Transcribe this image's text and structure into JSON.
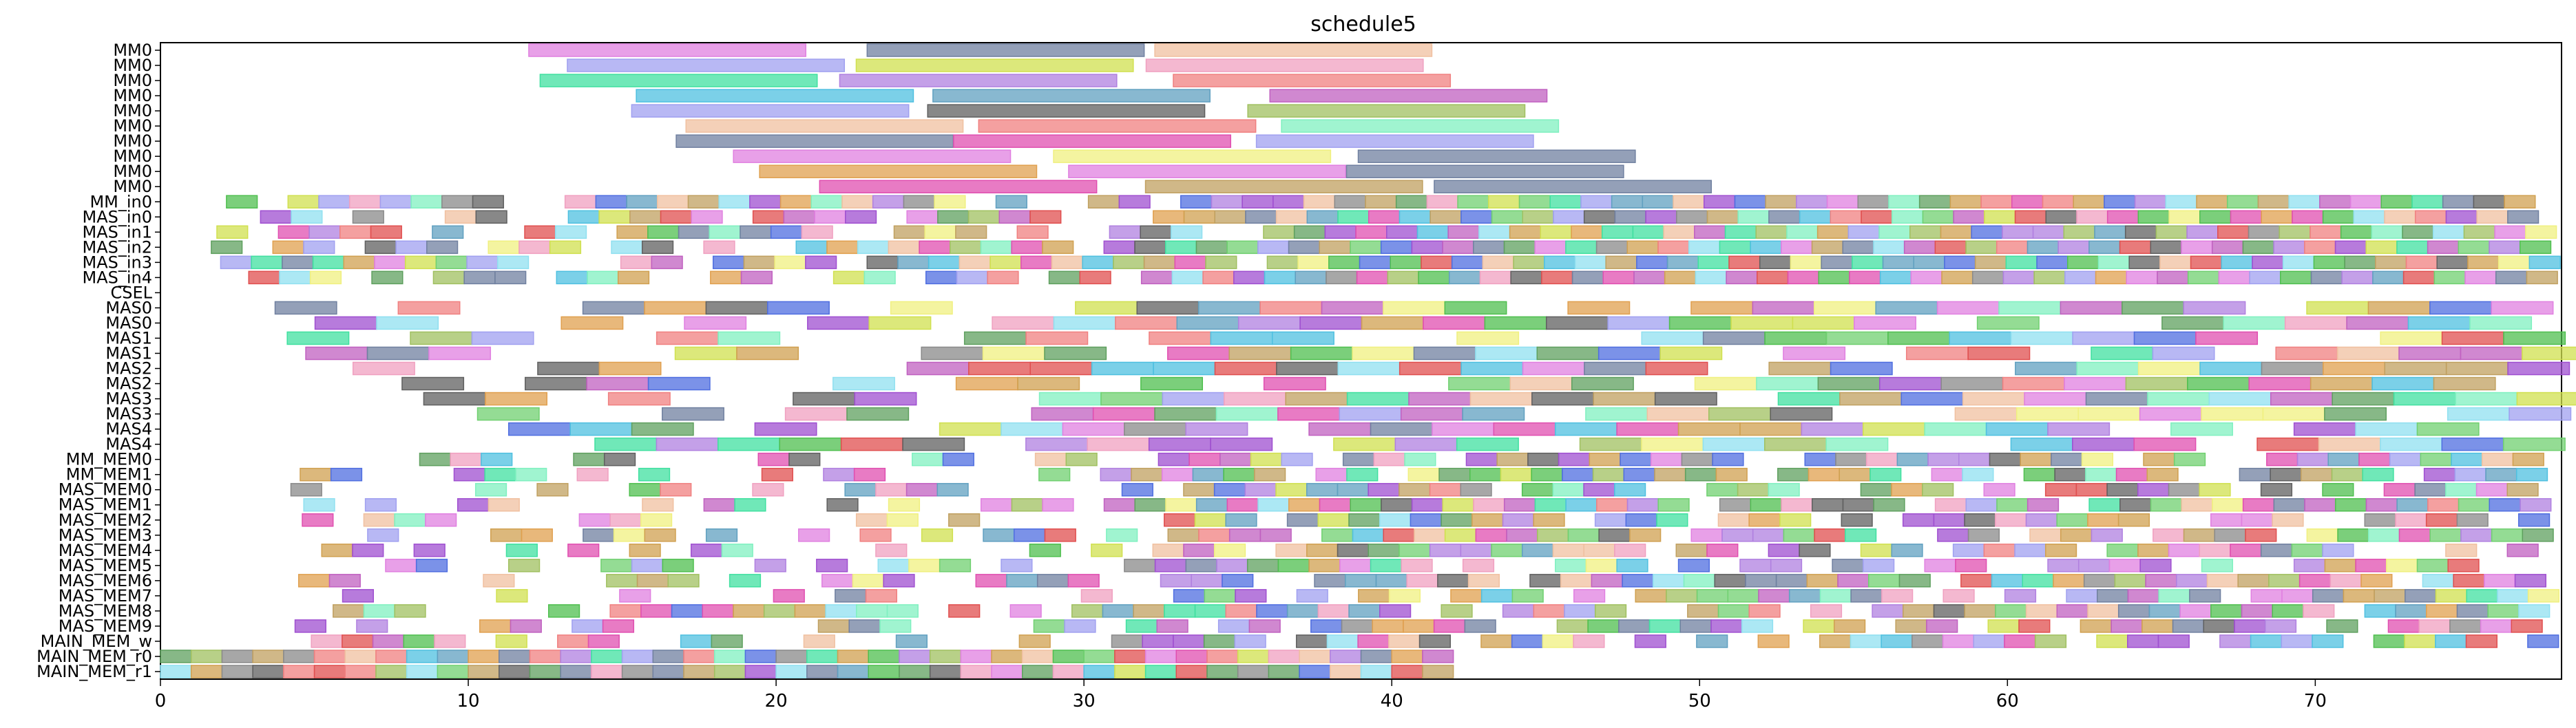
{
  "chart_data": {
    "type": "gantt",
    "title": "schedule5",
    "xlim": [
      0,
      78
    ],
    "x_ticks": [
      0,
      10,
      20,
      30,
      40,
      50,
      60,
      70
    ],
    "rows": [
      "MM0",
      "MM0",
      "MM0",
      "MM0",
      "MM0",
      "MM0",
      "MM0",
      "MM0",
      "MM0",
      "MM0",
      "MM_in0",
      "MAS_in0",
      "MAS_in1",
      "MAS_in2",
      "MAS_in3",
      "MAS_in4",
      "CSEL",
      "MAS0",
      "MAS0",
      "MAS1",
      "MAS1",
      "MAS2",
      "MAS2",
      "MAS3",
      "MAS3",
      "MAS4",
      "MAS4",
      "MM_MEM0",
      "MM_MEM1",
      "MAS_MEM0",
      "MAS_MEM1",
      "MAS_MEM2",
      "MAS_MEM3",
      "MAS_MEM4",
      "MAS_MEM5",
      "MAS_MEM6",
      "MAS_MEM7",
      "MAS_MEM8",
      "MAS_MEM9",
      "MAIN_MEM_w",
      "MAIN_MEM_r0",
      "MAIN_MEM_r1"
    ],
    "palette": [
      "#4f6ee0",
      "#e04f4f",
      "#4fbf4f",
      "#9f4fd0",
      "#4fc0e0",
      "#e0a04f",
      "#d0e04f",
      "#e04fb0",
      "#5fa05f",
      "#8a8a8a",
      "#b080e0",
      "#f08080",
      "#80f0c0",
      "#c0a060",
      "#60a0c0",
      "#f0f080",
      "#a0c060",
      "#e080e0",
      "#7080a0",
      "#f0c0a0",
      "#40e0a0",
      "#c060c0",
      "#a0a0f0",
      "#606060",
      "#f0a0c0",
      "#90e0f0",
      "#d0a050",
      "#70d070"
    ],
    "groups": [
      {
        "rows": [
          0,
          1,
          2,
          3,
          4,
          5,
          6,
          7,
          8,
          9
        ],
        "base": 10,
        "step": 1,
        "dur": 9,
        "rnd": 3,
        "stack": false
      },
      {
        "rows": [
          10,
          11,
          12,
          13,
          14,
          15
        ],
        "base": 1,
        "step": 0.2,
        "dur": 1,
        "rnd": 2,
        "stack": true,
        "density": 0.72,
        "dense_from": 35
      },
      {
        "rows": [
          17,
          18,
          19,
          20,
          21,
          22,
          23,
          24,
          25,
          26
        ],
        "base": 1,
        "step": 1.2,
        "dur": 2,
        "rnd": 1,
        "stack": true,
        "density": 0.55,
        "dense_from": 28
      },
      {
        "rows": [
          27,
          28,
          29,
          30,
          31,
          32,
          33,
          34,
          35,
          36,
          37,
          38,
          39
        ],
        "base": 4,
        "step": 0,
        "dur": 1,
        "rnd": 1,
        "stack": true,
        "density": 0.5,
        "dense_from": 32
      },
      {
        "rows": [
          40,
          41
        ],
        "base": 0,
        "step": 0,
        "dur": 1,
        "rnd": 0,
        "stack": true,
        "density": 1,
        "dense_from": 0,
        "until": 42
      }
    ]
  }
}
